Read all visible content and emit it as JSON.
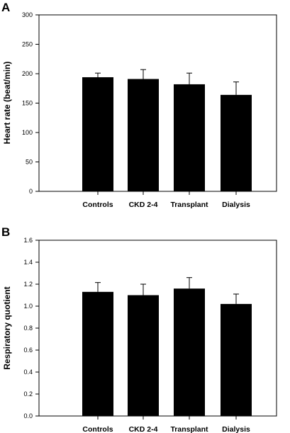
{
  "chart_data": [
    {
      "type": "bar",
      "panel": "A",
      "categories": [
        "Controls",
        "CKD 2-4",
        "Transplant",
        "Dialysis"
      ],
      "values": [
        194,
        191,
        182,
        164
      ],
      "errors": [
        7,
        16,
        19,
        22
      ],
      "ylabel": "Heart rate (beat/min)",
      "xlabel": "",
      "ylim": [
        0,
        300
      ],
      "yticks": [
        "0",
        "50",
        "100",
        "150",
        "200",
        "250",
        "300"
      ],
      "bar_color": "#000000",
      "grid": false
    },
    {
      "type": "bar",
      "panel": "B",
      "categories": [
        "Controls",
        "CKD 2-4",
        "Transplant",
        "Dialysis"
      ],
      "values": [
        1.13,
        1.1,
        1.16,
        1.02
      ],
      "errors": [
        0.085,
        0.1,
        0.1,
        0.09
      ],
      "ylabel": "Respiratory quotient",
      "xlabel": "",
      "ylim": [
        0,
        1.6
      ],
      "yticks": [
        "0.0",
        "0.2",
        "0.4",
        "0.6",
        "0.8",
        "1.0",
        "1.2",
        "1.4",
        "1.6"
      ],
      "bar_color": "#000000",
      "grid": false
    }
  ]
}
